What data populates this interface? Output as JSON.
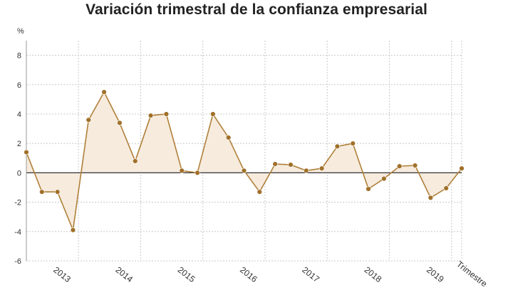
{
  "title": "Variación trimestral de la confianza empresarial",
  "colors": {
    "line": "#b0803a",
    "point": "#a0702a",
    "fill": "#f6ebdd",
    "zero_line": "#333333",
    "grid": "#c8c8c8",
    "text": "#333333"
  },
  "chart_data": {
    "type": "area",
    "title": "Variación trimestral de la confianza empresarial",
    "ylabel": "%",
    "xlabel": "Trimestre",
    "ylim": [
      -6,
      9
    ],
    "yticks": [
      -6,
      -4,
      -2,
      0,
      2,
      4,
      6,
      8
    ],
    "year_labels": [
      "2013",
      "2014",
      "2015",
      "2016",
      "2017",
      "2018",
      "2019"
    ],
    "grid": true,
    "series": [
      {
        "values": [
          1.4,
          -1.3,
          -1.3,
          -3.9,
          3.6,
          5.5,
          3.4,
          0.8,
          3.9,
          4.0,
          0.15,
          0.0,
          4.0,
          2.4,
          0.15,
          -1.3,
          0.6,
          0.55,
          0.15,
          0.3,
          1.8,
          2.0,
          -1.1,
          -0.4,
          0.45,
          0.5,
          -1.7,
          -1.05,
          0.3
        ]
      }
    ]
  }
}
